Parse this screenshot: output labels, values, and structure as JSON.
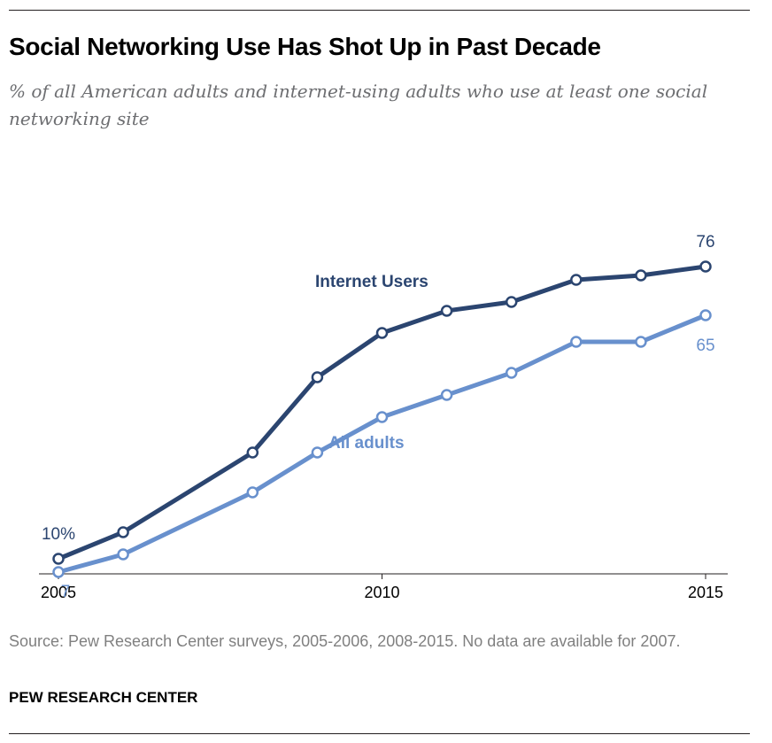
{
  "header": {
    "title": "Social Networking Use Has Shot Up in Past Decade",
    "subtitle": "% of all American adults and internet-using adults who use at least one social networking site"
  },
  "chart_data": {
    "type": "line",
    "title": "Social Networking Use Has Shot Up in Past Decade",
    "subtitle": "% of all American adults and internet-using adults who use at least one social networking site",
    "x": [
      2005,
      2006,
      2008,
      2009,
      2010,
      2011,
      2012,
      2013,
      2014,
      2015
    ],
    "xlim": [
      2005,
      2015
    ],
    "ylim": [
      0,
      85
    ],
    "x_ticks": [
      "2005",
      "2010",
      "2015"
    ],
    "grid": false,
    "series": [
      {
        "name": "Internet Users",
        "color": "#2b4570",
        "values": [
          10,
          16,
          34,
          51,
          61,
          66,
          68,
          73,
          74,
          76
        ],
        "start_label": "10%",
        "end_label": "76"
      },
      {
        "name": "All adults",
        "color": "#6890cd",
        "values": [
          7,
          11,
          25,
          34,
          42,
          47,
          52,
          59,
          59,
          65
        ],
        "start_label": "7",
        "end_label": "65"
      }
    ]
  },
  "footer": {
    "source": "Source: Pew Research Center surveys, 2005-2006, 2008-2015. No data are available for 2007.",
    "brand": "PEW RESEARCH CENTER"
  }
}
